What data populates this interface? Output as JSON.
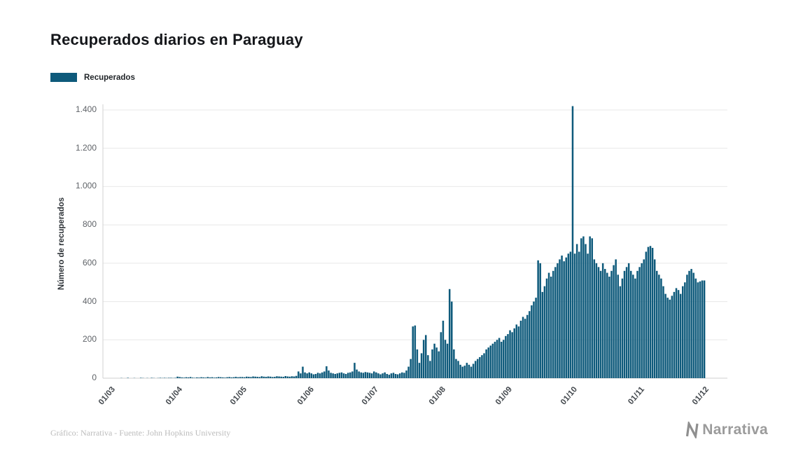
{
  "title": "Recuperados diarios en Paraguay",
  "legend": {
    "label": "Recuperados",
    "color": "#0e5a7b"
  },
  "footer": {
    "credit": "Gráfico: Narrativa - Fuente: John Hopkins University"
  },
  "brand": {
    "name": "Narrativa",
    "icon": "narrativa-n-logo",
    "color": "#9b9b9b"
  },
  "chart_data": {
    "type": "bar",
    "title": "Recuperados diarios en Paraguay",
    "series_name": "Recuperados",
    "xlabel": "",
    "ylabel": "Número de recuperados",
    "bar_color": "#0e5a7b",
    "grid": true,
    "legend_position": "top-left",
    "ylim": [
      0,
      1400
    ],
    "y_ticks": [
      "0",
      "200",
      "400",
      "600",
      "800",
      "1.000",
      "1.200",
      "1.400"
    ],
    "y_tick_values": [
      0,
      200,
      400,
      600,
      800,
      1000,
      1200,
      1400
    ],
    "x_start": "01/03",
    "x_end": "01/12",
    "x_ticks": [
      {
        "label": "01/03",
        "day": 0
      },
      {
        "label": "01/04",
        "day": 31
      },
      {
        "label": "01/05",
        "day": 61
      },
      {
        "label": "01/06",
        "day": 92
      },
      {
        "label": "01/07",
        "day": 122
      },
      {
        "label": "01/08",
        "day": 153
      },
      {
        "label": "01/09",
        "day": 184
      },
      {
        "label": "01/10",
        "day": 214
      },
      {
        "label": "01/11",
        "day": 245
      },
      {
        "label": "01/12",
        "day": 275
      }
    ],
    "values": [
      0,
      0,
      0,
      0,
      0,
      1,
      0,
      0,
      2,
      0,
      0,
      1,
      0,
      0,
      2,
      1,
      0,
      1,
      0,
      2,
      1,
      0,
      1,
      2,
      1,
      2,
      1,
      2,
      2,
      1,
      2,
      8,
      6,
      4,
      3,
      5,
      4,
      6,
      3,
      2,
      4,
      3,
      5,
      4,
      3,
      6,
      4,
      5,
      3,
      4,
      6,
      5,
      4,
      3,
      5,
      6,
      4,
      5,
      7,
      5,
      6,
      6,
      5,
      8,
      7,
      6,
      9,
      8,
      7,
      6,
      10,
      8,
      7,
      9,
      8,
      6,
      7,
      10,
      9,
      8,
      7,
      11,
      9,
      8,
      10,
      9,
      12,
      35,
      25,
      60,
      30,
      25,
      30,
      25,
      20,
      22,
      28,
      25,
      30,
      35,
      62,
      40,
      28,
      25,
      22,
      25,
      28,
      30,
      25,
      22,
      28,
      30,
      35,
      80,
      45,
      35,
      30,
      28,
      32,
      30,
      28,
      25,
      35,
      30,
      25,
      20,
      25,
      30,
      22,
      18,
      25,
      28,
      22,
      20,
      25,
      30,
      28,
      40,
      60,
      100,
      270,
      275,
      150,
      80,
      130,
      200,
      225,
      120,
      90,
      150,
      180,
      160,
      140,
      240,
      300,
      200,
      180,
      465,
      400,
      150,
      100,
      90,
      70,
      60,
      65,
      80,
      70,
      60,
      75,
      90,
      100,
      110,
      120,
      130,
      150,
      160,
      170,
      180,
      190,
      200,
      210,
      190,
      200,
      220,
      230,
      250,
      240,
      260,
      280,
      270,
      300,
      320,
      310,
      330,
      350,
      380,
      400,
      420,
      615,
      600,
      450,
      480,
      520,
      550,
      530,
      560,
      580,
      600,
      620,
      640,
      610,
      630,
      650,
      660,
      1420,
      650,
      700,
      660,
      730,
      740,
      700,
      650,
      740,
      730,
      620,
      600,
      580,
      560,
      600,
      570,
      550,
      530,
      560,
      590,
      620,
      540,
      480,
      520,
      560,
      580,
      600,
      560,
      540,
      520,
      560,
      580,
      600,
      620,
      660,
      685,
      690,
      680,
      620,
      560,
      540,
      520,
      480,
      440,
      420,
      410,
      430,
      450,
      470,
      460,
      440,
      480,
      500,
      540,
      560,
      570,
      550,
      520,
      500,
      505,
      510,
      510
    ]
  }
}
